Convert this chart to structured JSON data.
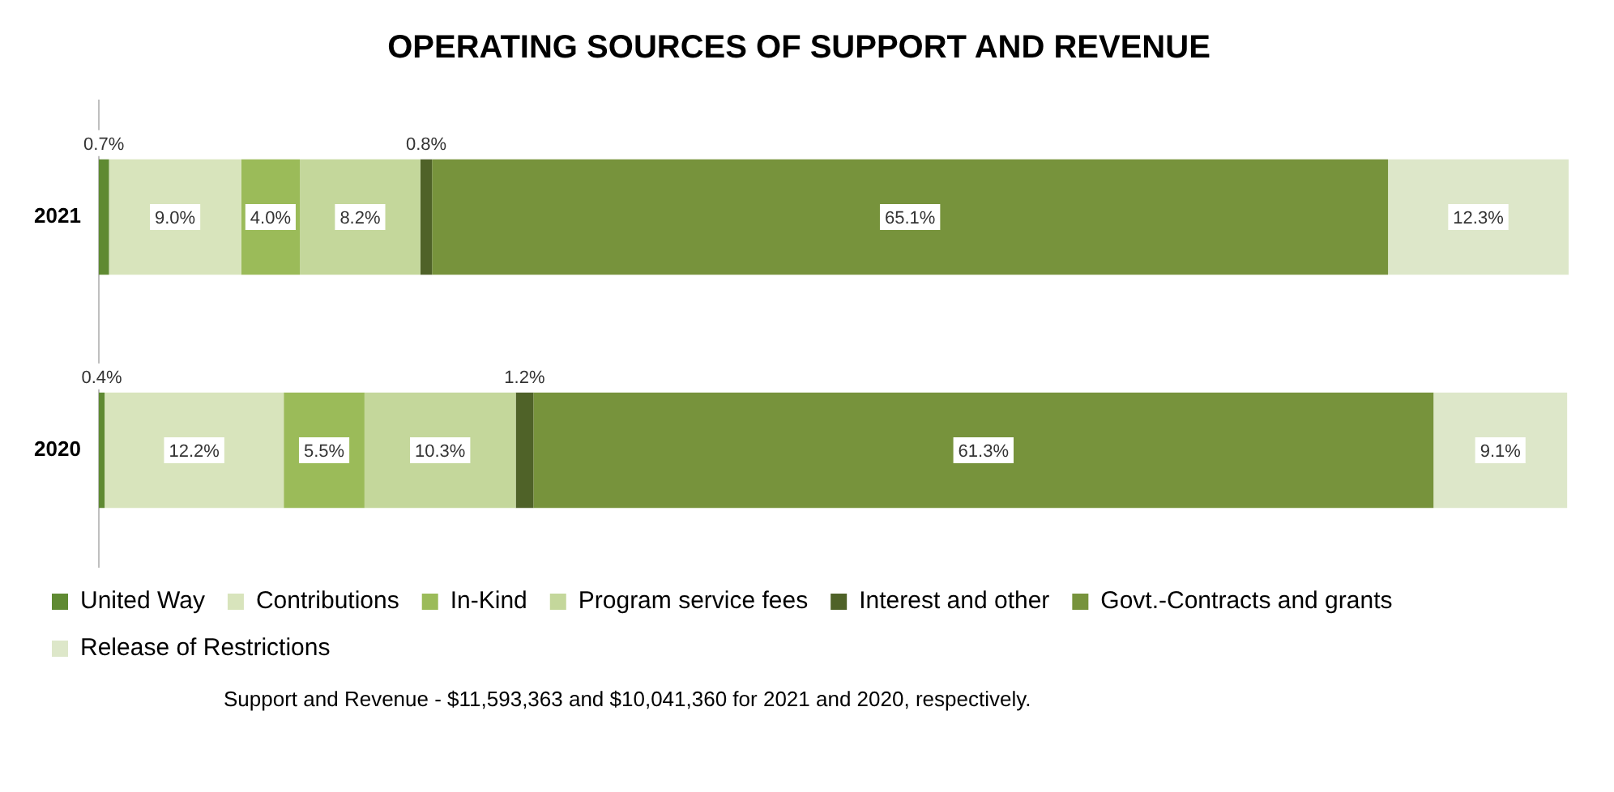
{
  "chart_data": {
    "type": "bar",
    "title": "OPERATING SOURCES OF SUPPORT AND REVENUE",
    "orientation": "horizontal",
    "stacked": true,
    "categories": [
      "2021",
      "2020"
    ],
    "series": [
      {
        "name": "United Way",
        "color": "#5f8a32",
        "values": [
          0.7,
          0.4
        ],
        "value_labels": [
          "0.7%",
          "0.4%"
        ]
      },
      {
        "name": "Contributions",
        "color": "#d8e4bc",
        "values": [
          9.0,
          12.2
        ],
        "value_labels": [
          "9.0%",
          "12.2%"
        ]
      },
      {
        "name": "In-Kind",
        "color": "#9bbb59",
        "values": [
          4.0,
          5.5
        ],
        "value_labels": [
          "4.0%",
          "5.5%"
        ]
      },
      {
        "name": "Program service fees",
        "color": "#c4d79b",
        "values": [
          8.2,
          10.3
        ],
        "value_labels": [
          "8.2%",
          "10.3%"
        ]
      },
      {
        "name": "Interest and other",
        "color": "#4f6228",
        "values": [
          0.8,
          1.2
        ],
        "value_labels": [
          "0.8%",
          "1.2%"
        ]
      },
      {
        "name": "Govt.-Contracts and grants",
        "color": "#77933c",
        "values": [
          65.1,
          61.3
        ],
        "value_labels": [
          "65.1%",
          "61.3%"
        ]
      },
      {
        "name": "Release of Restrictions",
        "color": "#dde7c9",
        "values": [
          12.3,
          9.1
        ],
        "value_labels": [
          "12.3%",
          "9.1%"
        ]
      }
    ],
    "xlim": [
      0,
      100.1
    ],
    "tick_labels": "y",
    "legend": "bottom",
    "annotations": [
      "Support and Revenue - $11,593,363 and $10,041,360 for 2021 and 2020, respectively."
    ]
  }
}
